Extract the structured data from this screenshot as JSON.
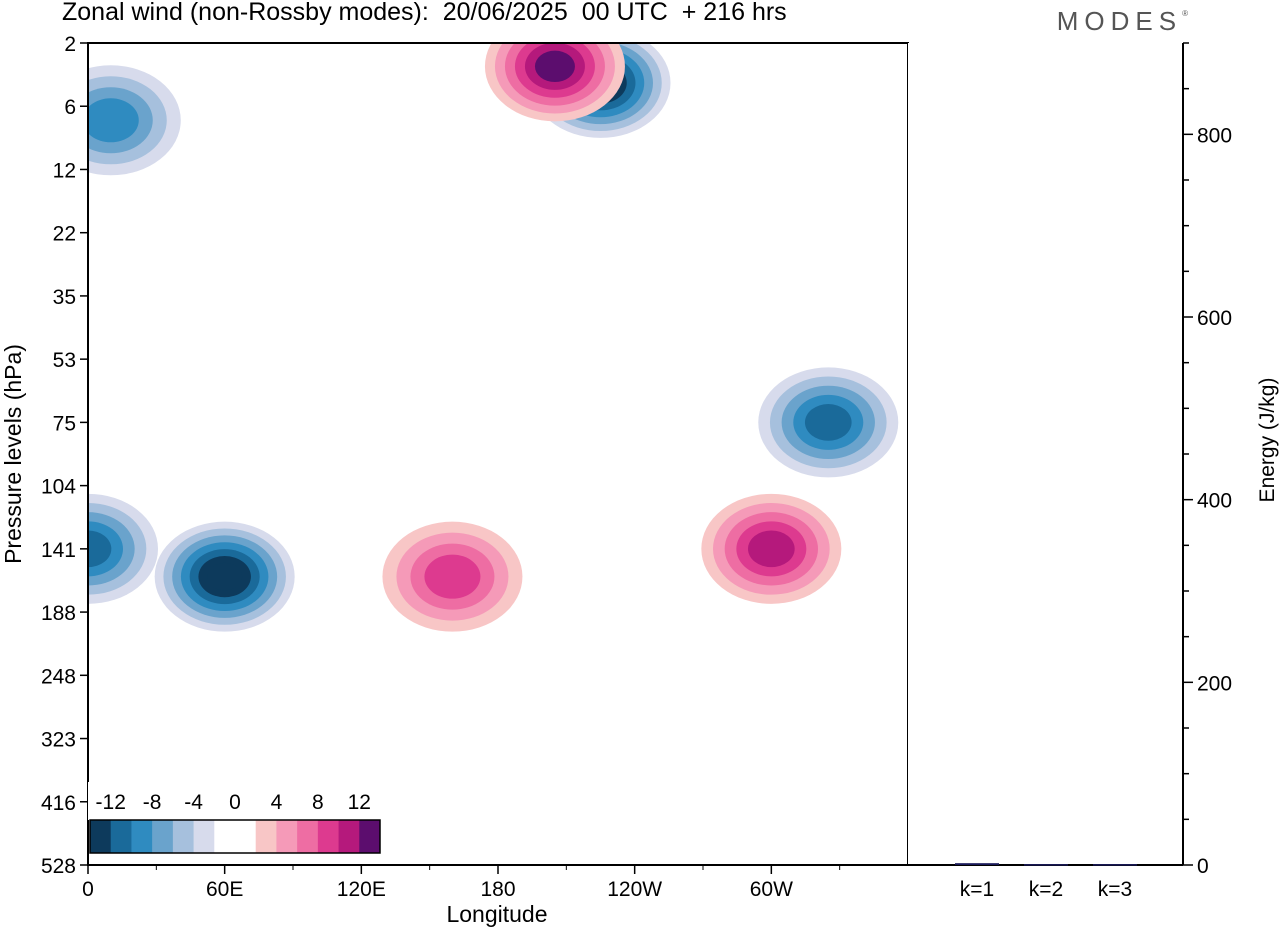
{
  "header": {
    "title": "Zonal wind (non-Rossby modes):  20/06/2025  00 UTC  + 216 hrs",
    "logo": "MODES",
    "logo_mark": "®"
  },
  "chart_data": [
    {
      "type": "heatmap",
      "title": "Zonal wind (non-Rossby modes):  20/06/2025  00 UTC  + 216 hrs",
      "xlabel": "Longitude",
      "ylabel": "Pressure levels (hPa)",
      "x_ticks": [
        "0",
        "60E",
        "120E",
        "180",
        "120W",
        "60W"
      ],
      "x_tick_degrees": [
        0,
        60,
        120,
        180,
        240,
        300
      ],
      "xlim": [
        0,
        360
      ],
      "y_ticks": [
        "2",
        "6",
        "12",
        "22",
        "35",
        "53",
        "75",
        "104",
        "141",
        "188",
        "248",
        "323",
        "416",
        "528"
      ],
      "y_scale": "non-linear (model levels)",
      "colorbar": {
        "tick_labels": [
          "-12",
          "-8",
          "-4",
          "0",
          "4",
          "8",
          "12"
        ],
        "levels": [
          -14,
          -12,
          -10,
          -8,
          -6,
          -4,
          -2,
          0,
          2,
          4,
          6,
          8,
          10,
          12,
          14
        ],
        "colors": [
          "#0d3a5c",
          "#1a6a9a",
          "#2f8bc0",
          "#6aa3cc",
          "#a6c0dd",
          "#d7dbec",
          "#ffffff",
          "#ffffff",
          "#f8c6c6",
          "#f59ab8",
          "#ee6da3",
          "#dd3a8f",
          "#b5197c",
          "#5c0d6e"
        ],
        "placement": "bottom-left"
      },
      "features": [
        {
          "kind": "negative",
          "peak_ms": -14,
          "lon": 60,
          "level_hpa": 160
        },
        {
          "kind": "negative",
          "peak_ms": -10,
          "lon": 0,
          "level_hpa": 141
        },
        {
          "kind": "negative",
          "peak_ms": -14,
          "lon": 225,
          "level_hpa": 4
        },
        {
          "kind": "positive",
          "peak_ms": 12,
          "lon": 205,
          "level_hpa": 3
        },
        {
          "kind": "positive",
          "peak_ms": 8,
          "lon": 160,
          "level_hpa": 160
        },
        {
          "kind": "positive",
          "peak_ms": 10,
          "lon": 300,
          "level_hpa": 141
        },
        {
          "kind": "negative",
          "peak_ms": -10,
          "lon": 325,
          "level_hpa": 75
        },
        {
          "kind": "negative",
          "peak_ms": -8,
          "lon": 10,
          "level_hpa": 7
        }
      ]
    },
    {
      "type": "bar",
      "ylabel": "Energy (J/kg)",
      "categories": [
        "k=1",
        "k=2",
        "k=3"
      ],
      "values": [
        2,
        1,
        1
      ],
      "ylim": [
        0,
        900
      ],
      "y_ticks": [
        "0",
        "200",
        "400",
        "600",
        "800"
      ],
      "y_tick_values": [
        0,
        200,
        400,
        600,
        800
      ],
      "axis_side": "right",
      "bar_color": "#1a1a5a"
    }
  ]
}
